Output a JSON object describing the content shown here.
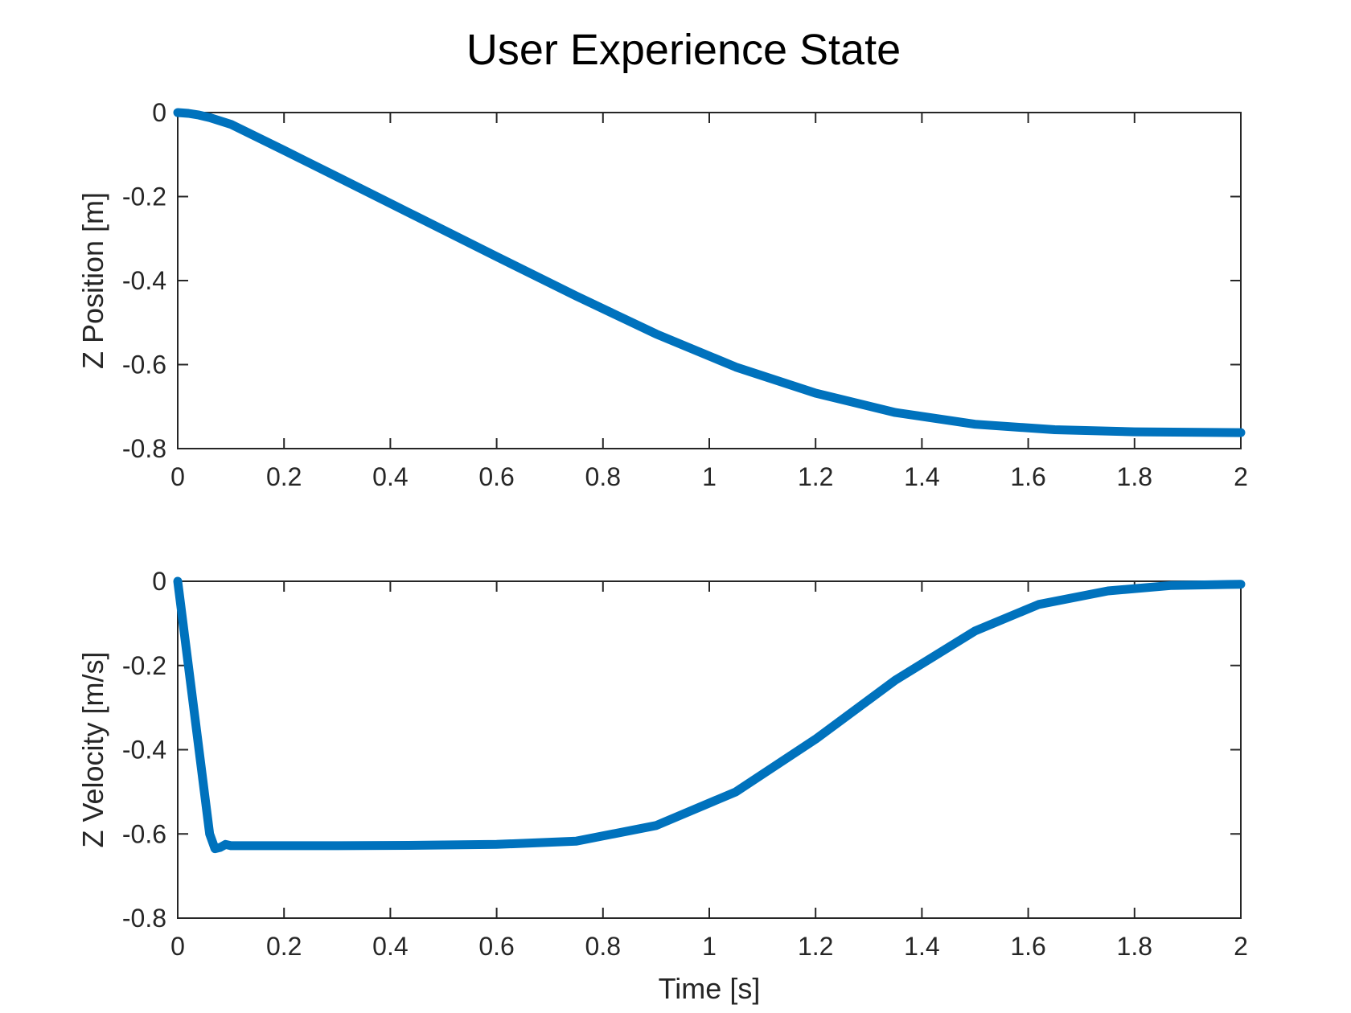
{
  "chart_data": {
    "title": "User Experience State",
    "colors": {
      "series": "#0072BD",
      "axes": "#262626"
    },
    "plots": [
      {
        "type": "line",
        "title": "",
        "xlabel": "",
        "ylabel": "Z Position [m]",
        "xlim": [
          0,
          2
        ],
        "ylim": [
          -0.8,
          0
        ],
        "xticks": [
          "0",
          "0.2",
          "0.4",
          "0.6",
          "0.8",
          "1",
          "1.2",
          "1.4",
          "1.6",
          "1.8",
          "2"
        ],
        "yticks": [
          "0",
          "-0.2",
          "-0.4",
          "-0.6",
          "-0.8"
        ],
        "grid": false,
        "series": [
          {
            "x": [
              0,
              0.02,
              0.04,
              0.06,
              0.1,
              0.2,
              0.3,
              0.45,
              0.6,
              0.75,
              0.9,
              1.05,
              1.2,
              1.35,
              1.5,
              1.65,
              1.8,
              2.0
            ],
            "y": [
              0,
              -0.002,
              -0.006,
              -0.012,
              -0.028,
              -0.09,
              -0.153,
              -0.248,
              -0.343,
              -0.437,
              -0.527,
              -0.606,
              -0.668,
              -0.714,
              -0.742,
              -0.755,
              -0.76,
              -0.762
            ]
          }
        ]
      },
      {
        "type": "line",
        "title": "",
        "xlabel": "Time [s]",
        "ylabel": "Z Velocity [m/s]",
        "xlim": [
          0,
          2
        ],
        "ylim": [
          -0.8,
          0
        ],
        "xticks": [
          "0",
          "0.2",
          "0.4",
          "0.6",
          "0.8",
          "1",
          "1.2",
          "1.4",
          "1.6",
          "1.8",
          "2"
        ],
        "yticks": [
          "0",
          "-0.2",
          "-0.4",
          "-0.6",
          "-0.8"
        ],
        "grid": false,
        "series": [
          {
            "x": [
              0,
              0.06,
              0.07,
              0.08,
              0.09,
              0.1,
              0.3,
              0.45,
              0.6,
              0.75,
              0.9,
              1.05,
              1.2,
              1.35,
              1.5,
              1.62,
              1.75,
              1.87,
              2.0
            ],
            "y": [
              0,
              -0.6,
              -0.635,
              -0.632,
              -0.625,
              -0.628,
              -0.628,
              -0.627,
              -0.625,
              -0.617,
              -0.58,
              -0.5,
              -0.375,
              -0.235,
              -0.118,
              -0.055,
              -0.023,
              -0.01,
              -0.007
            ]
          }
        ]
      }
    ]
  }
}
